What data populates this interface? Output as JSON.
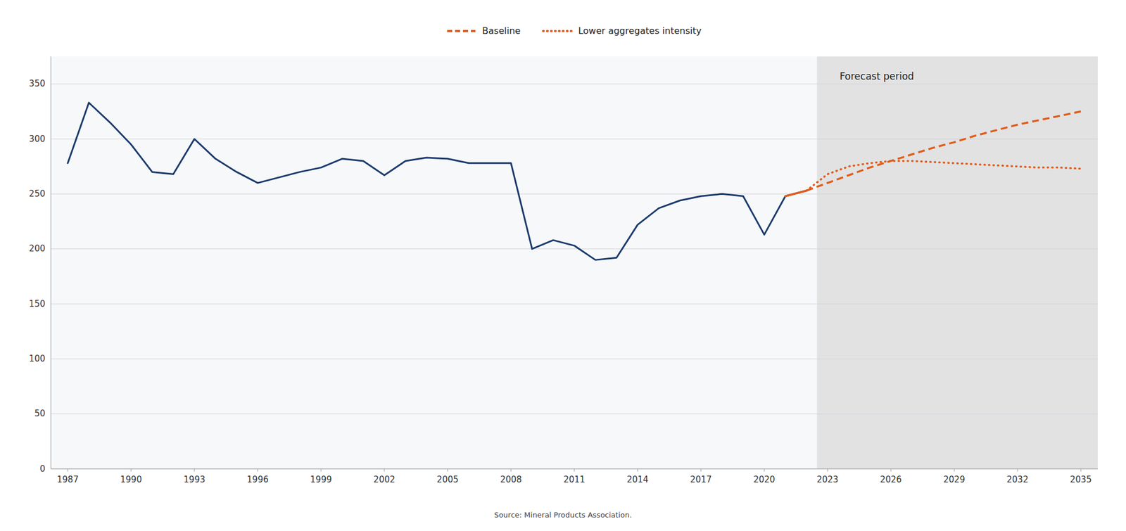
{
  "chart_data": {
    "type": "line",
    "series": [
      {
        "color": "#1a3a6b",
        "line_style": "solid",
        "x": [
          1987,
          1988,
          1989,
          1990,
          1991,
          1992,
          1993,
          1994,
          1995,
          1996,
          1997,
          1998,
          1999,
          2000,
          2001,
          2002,
          2003,
          2004,
          2005,
          2006,
          2007,
          2008,
          2009,
          2010,
          2011,
          2012,
          2013,
          2014,
          2015,
          2016,
          2017,
          2018,
          2019,
          2020,
          2021,
          2022
        ],
        "values": [
          278,
          333,
          315,
          295,
          270,
          268,
          300,
          282,
          270,
          260,
          265,
          270,
          274,
          282,
          280,
          267,
          280,
          283,
          282,
          278,
          278,
          278,
          200,
          208,
          203,
          190,
          192,
          222,
          237,
          244,
          248,
          250,
          248,
          213,
          248,
          253
        ]
      },
      {
        "color": "#e05c1a",
        "line_style": "solid",
        "x": [
          2021,
          2022
        ],
        "values": [
          248,
          253
        ]
      },
      {
        "name": "Baseline",
        "color": "#e05c1a",
        "line_style": "dashed",
        "x": [
          2022,
          2023,
          2024,
          2025,
          2026,
          2027,
          2028,
          2029,
          2030,
          2031,
          2032,
          2033,
          2034,
          2035
        ],
        "values": [
          253,
          260,
          267,
          274,
          280,
          286,
          292,
          297,
          303,
          308,
          313,
          317,
          321,
          325
        ]
      },
      {
        "name": "Lower aggregates intensity",
        "color": "#e05c1a",
        "line_style": "dotted",
        "x": [
          2022,
          2023,
          2024,
          2025,
          2026,
          2027,
          2028,
          2029,
          2030,
          2031,
          2032,
          2033,
          2034,
          2035
        ],
        "values": [
          253,
          268,
          275,
          278,
          280,
          280,
          279,
          278,
          277,
          276,
          275,
          274,
          274,
          273
        ]
      }
    ],
    "forecast_start": 2022.5,
    "annotations": [
      {
        "text": "Forecast period"
      }
    ],
    "source": "Source: Mineral Products Association.",
    "xlim": [
      1986.2,
      2035.8
    ],
    "ylim": [
      0,
      375
    ],
    "xticks": [
      1987,
      1990,
      1993,
      1996,
      1999,
      2002,
      2005,
      2008,
      2011,
      2014,
      2017,
      2020,
      2023,
      2026,
      2029,
      2032,
      2035
    ],
    "yticks": [
      0,
      50,
      100,
      150,
      200,
      250,
      300,
      350
    ],
    "grid": true,
    "legend": "top"
  }
}
